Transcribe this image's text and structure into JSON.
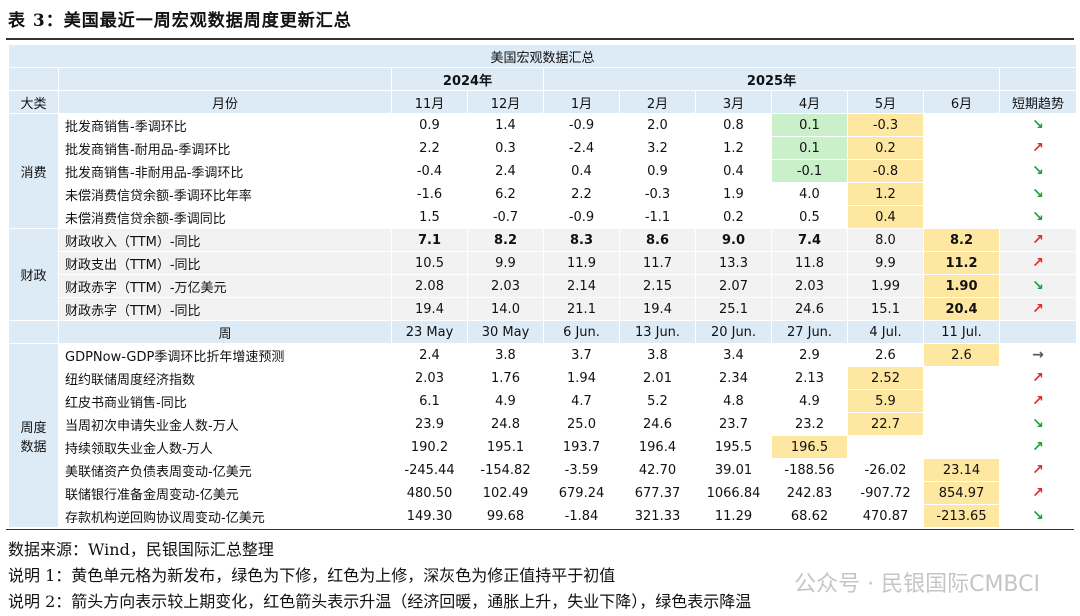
{
  "title": "表 3：美国最近一周宏观数据周度更新汇总",
  "table_title": "美国宏观数据汇总",
  "years": {
    "y2024": "2024年",
    "y2025": "2025年"
  },
  "header": {
    "category": "大类",
    "month": "月份",
    "trend": "短期趋势",
    "months": [
      "11月",
      "12月",
      "1月",
      "2月",
      "3月",
      "4月",
      "5月",
      "6月"
    ]
  },
  "groups": {
    "consumption": "消费",
    "fiscal": "财政",
    "weekly_line1": "周度",
    "weekly_line2": "数据"
  },
  "monthly_rows": [
    {
      "label": "批发商销售-季调环比",
      "values": [
        "0.9",
        "1.4",
        "-0.9",
        "2.0",
        "0.8",
        "0.1",
        "-0.3",
        ""
      ],
      "trend": "down"
    },
    {
      "label": "批发商销售-耐用品-季调环比",
      "values": [
        "2.2",
        "0.3",
        "-2.4",
        "3.2",
        "1.2",
        "0.1",
        "0.2",
        ""
      ],
      "trend": "up"
    },
    {
      "label": "批发商销售-非耐用品-季调环比",
      "values": [
        "-0.4",
        "2.4",
        "0.4",
        "0.9",
        "0.4",
        "-0.1",
        "-0.8",
        ""
      ],
      "trend": "down"
    },
    {
      "label": "未偿消费信贷余额-季调环比年率",
      "values": [
        "-1.6",
        "6.2",
        "2.2",
        "-0.3",
        "1.9",
        "4.0",
        "1.2",
        ""
      ],
      "trend": "down"
    },
    {
      "label": "未偿消费信贷余额-季调同比",
      "values": [
        "1.5",
        "-0.7",
        "-0.9",
        "-1.1",
        "0.2",
        "0.5",
        "0.4",
        ""
      ],
      "trend": "down"
    },
    {
      "label": "财政收入（TTM）-同比",
      "values": [
        "7.1",
        "8.2",
        "8.3",
        "8.6",
        "9.0",
        "7.4",
        "8.0",
        "8.2"
      ],
      "trend": "up"
    },
    {
      "label": "财政支出（TTM）-同比",
      "values": [
        "10.5",
        "9.9",
        "11.9",
        "11.7",
        "13.3",
        "11.8",
        "9.9",
        "11.2"
      ],
      "trend": "up"
    },
    {
      "label": "财政赤字（TTM）-万亿美元",
      "values": [
        "2.08",
        "2.03",
        "2.14",
        "2.15",
        "2.07",
        "2.03",
        "1.99",
        "1.90"
      ],
      "trend": "down"
    },
    {
      "label": "财政赤字（TTM）-同比",
      "values": [
        "19.4",
        "14.0",
        "21.1",
        "19.4",
        "25.1",
        "24.6",
        "15.1",
        "20.4"
      ],
      "trend": "up"
    }
  ],
  "week_header": {
    "label": "周",
    "weeks": [
      "23 May",
      "30 May",
      "6 Jun.",
      "13 Jun.",
      "20 Jun.",
      "27 Jun.",
      "4 Jul.",
      "11 Jul."
    ]
  },
  "weekly_rows": [
    {
      "label": "GDPNow-GDP季调环比折年增速预测",
      "values": [
        "2.4",
        "3.8",
        "3.7",
        "3.8",
        "3.4",
        "2.9",
        "2.6",
        "2.6"
      ],
      "trend": "flat"
    },
    {
      "label": "纽约联储周度经济指数",
      "values": [
        "2.03",
        "1.76",
        "1.94",
        "2.01",
        "2.34",
        "2.13",
        "2.52",
        ""
      ],
      "trend": "up"
    },
    {
      "label": "红皮书商业销售-同比",
      "values": [
        "6.1",
        "4.9",
        "4.7",
        "5.2",
        "4.8",
        "4.9",
        "5.9",
        ""
      ],
      "trend": "up"
    },
    {
      "label": "当周初次申请失业金人数-万人",
      "values": [
        "23.9",
        "24.8",
        "25.0",
        "24.6",
        "23.7",
        "23.2",
        "22.7",
        ""
      ],
      "trend": "down"
    },
    {
      "label": "持续领取失业金人数-万人",
      "values": [
        "190.2",
        "195.1",
        "193.7",
        "196.4",
        "195.5",
        "196.5",
        "",
        ""
      ],
      "trend": "up-green"
    },
    {
      "label": "美联储资产负债表周变动-亿美元",
      "values": [
        "-245.44",
        "-154.82",
        "-3.59",
        "42.70",
        "39.01",
        "-188.56",
        "-26.02",
        "23.14"
      ],
      "trend": "up"
    },
    {
      "label": "联储银行准备金周变动-亿美元",
      "values": [
        "480.50",
        "102.49",
        "679.24",
        "677.37",
        "1066.84",
        "242.83",
        "-907.72",
        "854.97"
      ],
      "trend": "up"
    },
    {
      "label": "存款机构逆回购协议周变动-亿美元",
      "values": [
        "149.30",
        "99.68",
        "-1.84",
        "321.33",
        "11.29",
        "68.62",
        "470.87",
        "-213.65"
      ],
      "trend": "down"
    }
  ],
  "trend_symbols": {
    "up": "↗",
    "down": "↘",
    "flat": "→",
    "up-green": "↗"
  },
  "colors": {
    "header_bg": "#ddebf7",
    "yellow": "#fde7a1",
    "green": "#c9f0c9",
    "up": "#e02a2a",
    "down": "#1e9e3a",
    "fiscal_bg": "#f2f2f2"
  },
  "notes": [
    "数据来源：Wind，民银国际汇总整理",
    "说明 1：黄色单元格为新发布，绿色为下修，红色为上修，深灰色为修正值持平于初值",
    "说明 2：箭头方向表示较上期变化，红色箭头表示升温（经济回暖，通胀上升，失业下降），绿色表示降温"
  ],
  "watermark": "公众号 · 民银国际CMBCI"
}
